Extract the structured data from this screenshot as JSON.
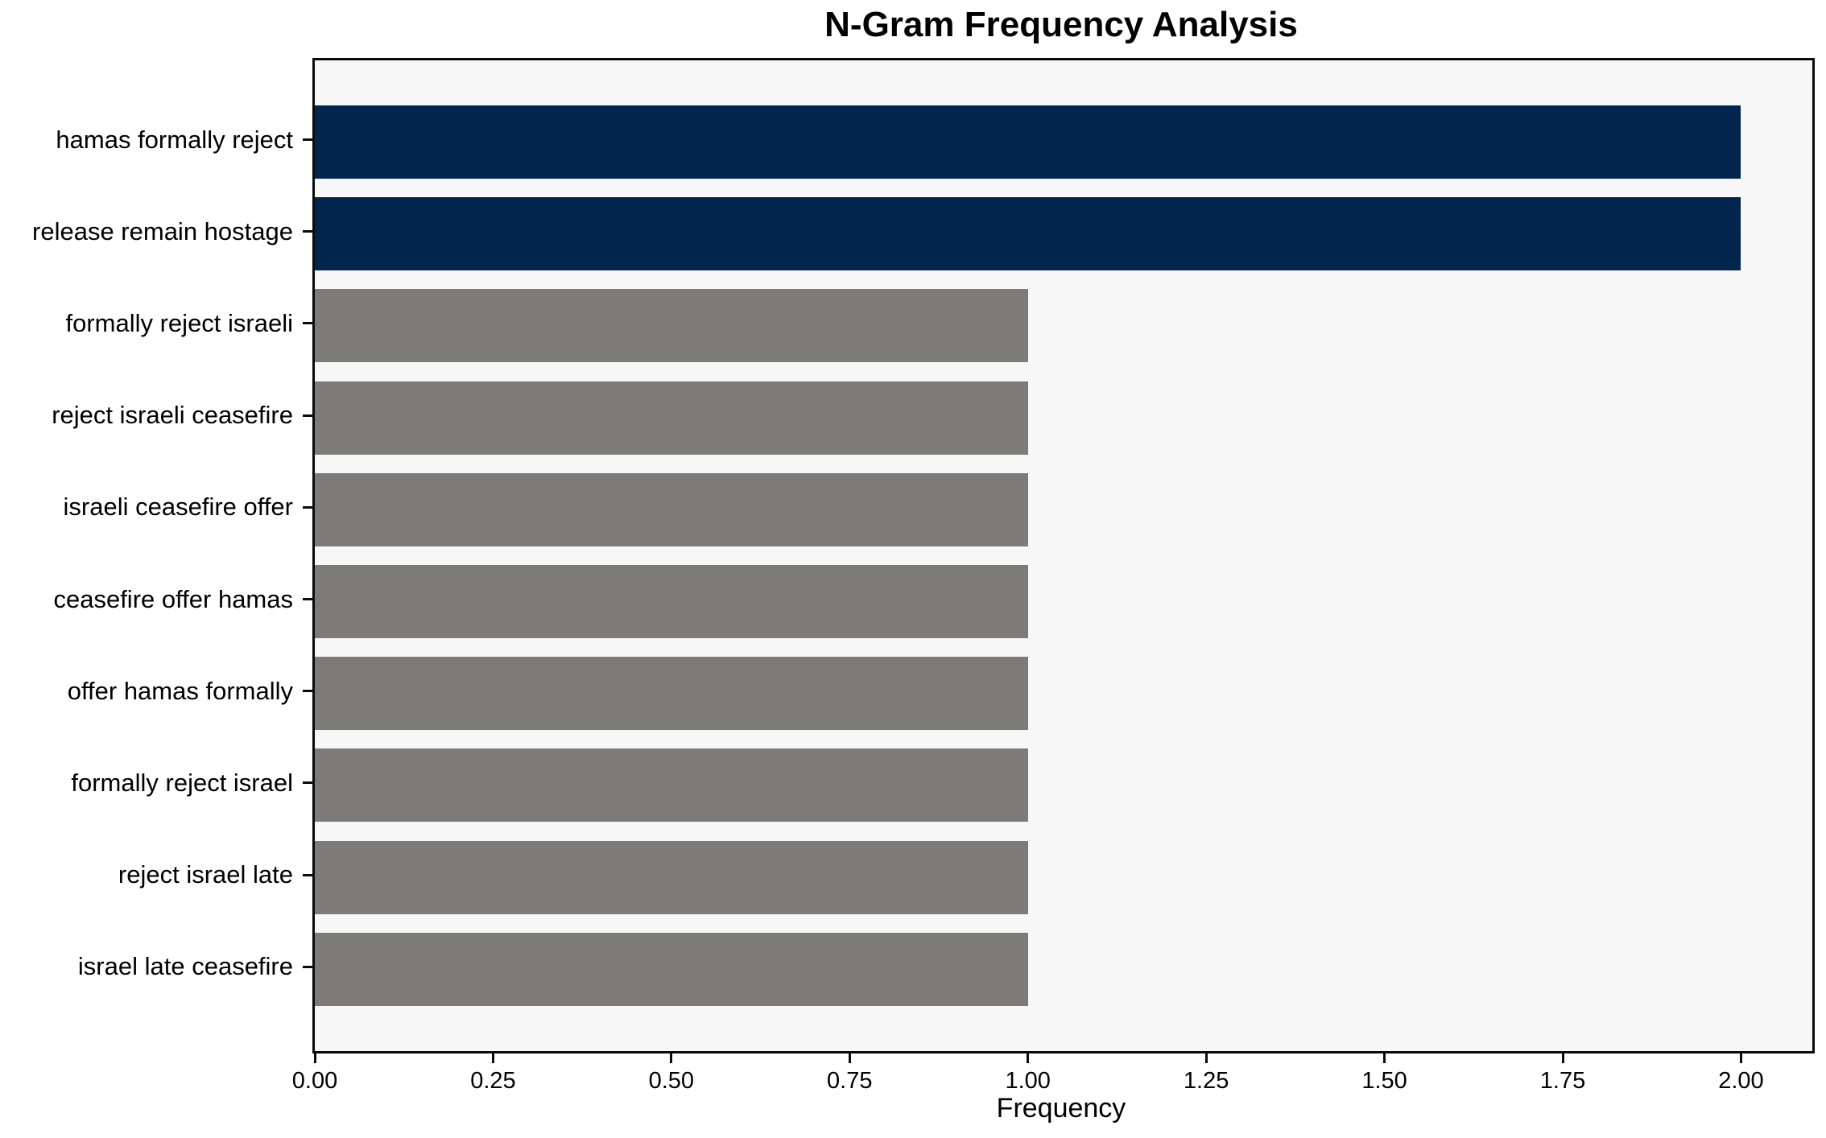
{
  "title": "N-Gram Frequency Analysis",
  "colors": {
    "highlight_bar": "#02254d",
    "regular_bar": "#7c7b77",
    "plot_background": "#f7f7f7",
    "figure_background": "#ffffff",
    "spine": "#0b0b0b",
    "text": "#000000"
  },
  "chart_data": {
    "type": "bar",
    "orientation": "horizontal",
    "title": "N-Gram Frequency Analysis",
    "xlabel": "Frequency",
    "ylabel": "",
    "categories": [
      "hamas formally reject",
      "release remain hostage",
      "formally reject israeli",
      "reject israeli ceasefire",
      "israeli ceasefire offer",
      "ceasefire offer hamas",
      "offer hamas formally",
      "formally reject israel",
      "reject israel late",
      "israel late ceasefire"
    ],
    "values": [
      2,
      2,
      1,
      1,
      1,
      1,
      1,
      1,
      1,
      1
    ],
    "bar_color_roles": [
      "highlight_bar",
      "highlight_bar",
      "regular_bar",
      "regular_bar",
      "regular_bar",
      "regular_bar",
      "regular_bar",
      "regular_bar",
      "regular_bar",
      "regular_bar"
    ],
    "xlim": [
      0,
      2.1
    ],
    "xticks": [
      {
        "value": 0.0,
        "label": "0.00"
      },
      {
        "value": 0.25,
        "label": "0.25"
      },
      {
        "value": 0.5,
        "label": "0.50"
      },
      {
        "value": 0.75,
        "label": "0.75"
      },
      {
        "value": 1.0,
        "label": "1.00"
      },
      {
        "value": 1.25,
        "label": "1.25"
      },
      {
        "value": 1.5,
        "label": "1.50"
      },
      {
        "value": 1.75,
        "label": "1.75"
      },
      {
        "value": 2.0,
        "label": "2.00"
      }
    ],
    "grid": false,
    "legend_position": "none"
  }
}
